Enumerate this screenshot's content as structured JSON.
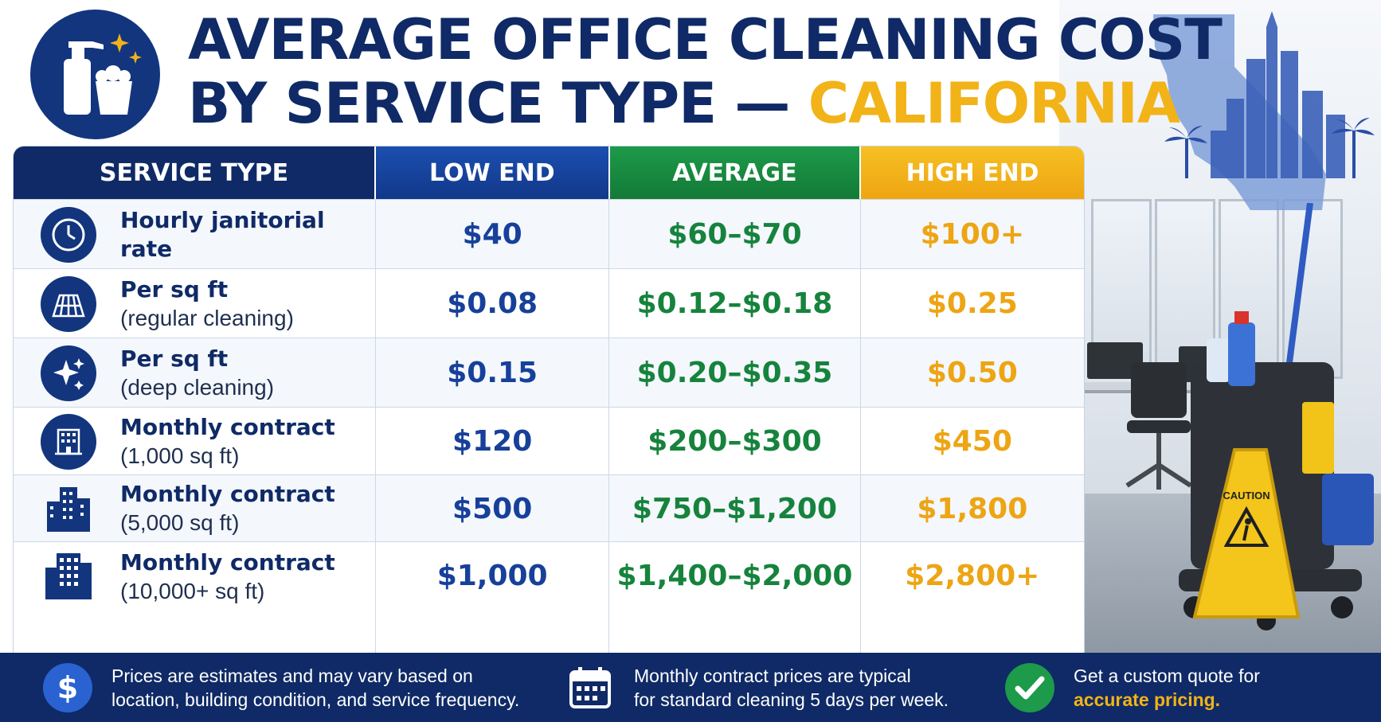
{
  "header": {
    "title_line1": "AVERAGE OFFICE CLEANING COST",
    "title_line2_prefix": "BY SERVICE TYPE — ",
    "title_line2_accent": "CALIFORNIA",
    "logo_icon": "cleaning-supplies-icon"
  },
  "table": {
    "columns": [
      "SERVICE TYPE",
      "LOW END",
      "AVERAGE",
      "HIGH END"
    ],
    "column_colors": [
      "#0f2a66",
      "#1b4fb0",
      "#1d9a4a",
      "#f6c023"
    ],
    "rows": [
      {
        "icon": "clock-icon",
        "service": "Hourly janitorial rate",
        "detail": "",
        "low": "$40",
        "average": "$60–$70",
        "high": "$100+"
      },
      {
        "icon": "floor-tiles-icon",
        "service": "Per sq ft",
        "detail": "(regular cleaning)",
        "low": "$0.08",
        "average": "$0.12–$0.18",
        "high": "$0.25"
      },
      {
        "icon": "sparkle-icon",
        "service": "Per sq ft",
        "detail": "(deep cleaning)",
        "low": "$0.15",
        "average": "$0.20–$0.35",
        "high": "$0.50"
      },
      {
        "icon": "small-office-building-icon",
        "service": "Monthly contract",
        "detail": "(1,000 sq ft)",
        "low": "$120",
        "average": "$200–$300",
        "high": "$450"
      },
      {
        "icon": "office-buildings-icon",
        "service": "Monthly contract",
        "detail": "(5,000 sq ft)",
        "low": "$500",
        "average": "$750–$1,200",
        "high": "$1,800"
      },
      {
        "icon": "large-office-building-icon",
        "service": "Monthly contract",
        "detail": "(10,000+ sq ft)",
        "low": "$1,000",
        "average": "$1,400–$2,000",
        "high": "$2,800+"
      }
    ]
  },
  "footer": {
    "note1_line1": "Prices are estimates and may vary based on",
    "note1_line2": "location, building condition, and service frequency.",
    "note1_icon": "dollar-icon",
    "note2_line1": "Monthly contract prices are typical",
    "note2_line2": "for standard cleaning 5 days per week.",
    "note2_icon": "calendar-icon",
    "note3_line1": "Get a custom quote for",
    "note3_line2": "accurate pricing.",
    "note3_icon": "check-icon"
  },
  "illustration": {
    "map_icon": "california-map-icon",
    "sign_text": "CAUTION"
  },
  "colors": {
    "navy": "#0f2a66",
    "blue": "#17409a",
    "green": "#16833d",
    "gold": "#f2b318"
  }
}
